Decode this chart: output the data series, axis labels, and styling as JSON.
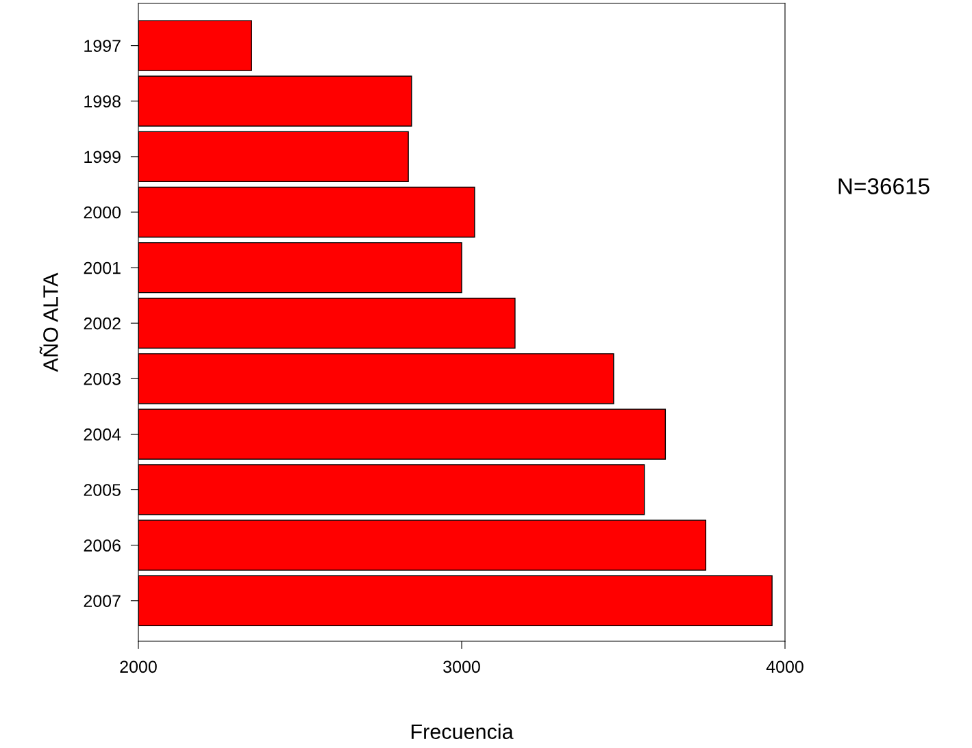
{
  "chart_data": {
    "type": "bar",
    "orientation": "horizontal",
    "xlabel": "Frecuencia",
    "ylabel": "AÑO ALTA",
    "categories": [
      "1997",
      "1998",
      "1999",
      "2000",
      "2001",
      "2002",
      "2003",
      "2004",
      "2005",
      "2006",
      "2007"
    ],
    "values": [
      2350,
      2845,
      2835,
      3040,
      3000,
      3165,
      3470,
      3630,
      3565,
      3755,
      3960
    ],
    "color": "#ff0000",
    "xlim": [
      2000,
      4000
    ],
    "xticks": [
      2000,
      3000,
      4000
    ],
    "annotations": [
      "N=36615"
    ],
    "grid": false,
    "legend": false
  }
}
